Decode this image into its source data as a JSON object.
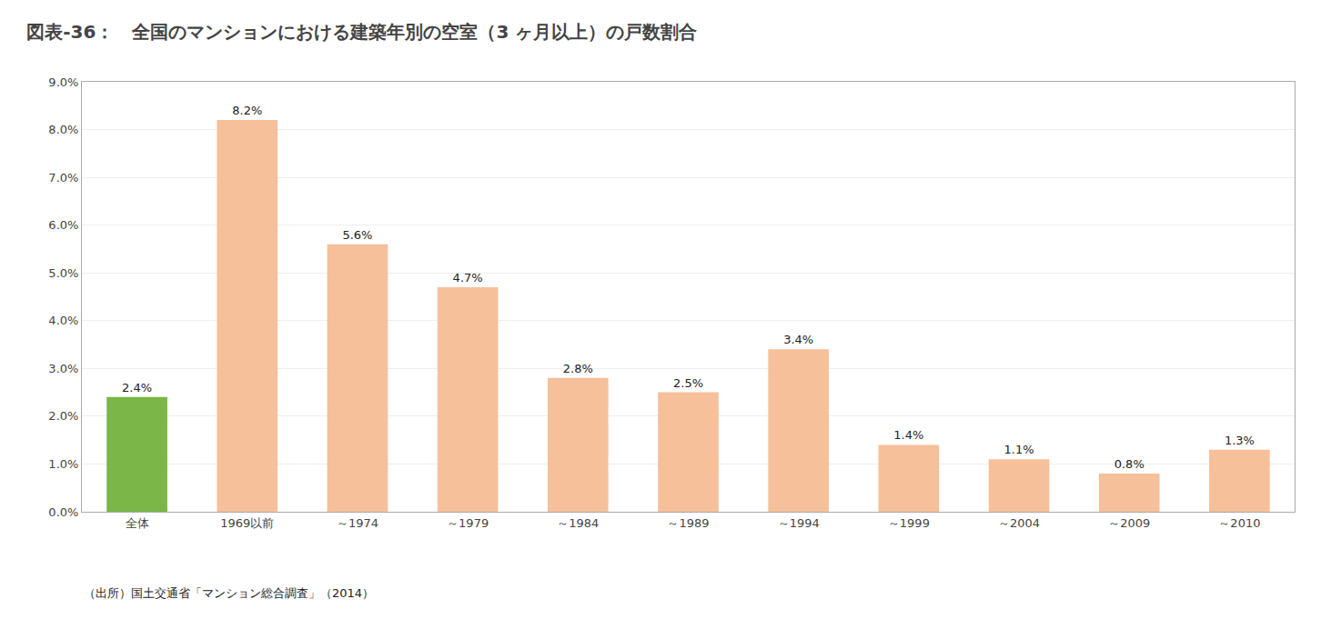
{
  "chart_data": {
    "type": "bar",
    "title": "図表-36：　全国のマンションにおける建築年別の空室（3 ヶ月以上）の戸数割合",
    "caption": "（出所）国土交通省「マンション総合調査」（2014）",
    "categories": [
      "全体",
      "1969以前",
      "～1974",
      "～1979",
      "～1984",
      "～1989",
      "～1994",
      "～1999",
      "～2004",
      "～2009",
      "～2010"
    ],
    "values": [
      2.4,
      8.2,
      5.6,
      4.7,
      2.8,
      2.5,
      3.4,
      1.4,
      1.1,
      0.8,
      1.3
    ],
    "value_labels": [
      "2.4%",
      "8.2%",
      "5.6%",
      "4.7%",
      "2.8%",
      "2.5%",
      "3.4%",
      "1.4%",
      "1.1%",
      "0.8%",
      "1.3%"
    ],
    "colors": [
      "#7ab648",
      "#f5c09a",
      "#f5c09a",
      "#f5c09a",
      "#f5c09a",
      "#f5c09a",
      "#f5c09a",
      "#f5c09a",
      "#f5c09a",
      "#f5c09a",
      "#f5c09a"
    ],
    "ylim": [
      0,
      9.0
    ],
    "yticks": [
      {
        "value": 0.0,
        "label": "0.0%"
      },
      {
        "value": 1.0,
        "label": "1.0%"
      },
      {
        "value": 2.0,
        "label": "2.0%"
      },
      {
        "value": 3.0,
        "label": "3.0%"
      },
      {
        "value": 4.0,
        "label": "4.0%"
      },
      {
        "value": 5.0,
        "label": "5.0%"
      },
      {
        "value": 6.0,
        "label": "6.0%"
      },
      {
        "value": 7.0,
        "label": "7.0%"
      },
      {
        "value": 8.0,
        "label": "8.0%"
      },
      {
        "value": 9.0,
        "label": "9.0%"
      }
    ],
    "data_labels": true,
    "grid": true
  }
}
